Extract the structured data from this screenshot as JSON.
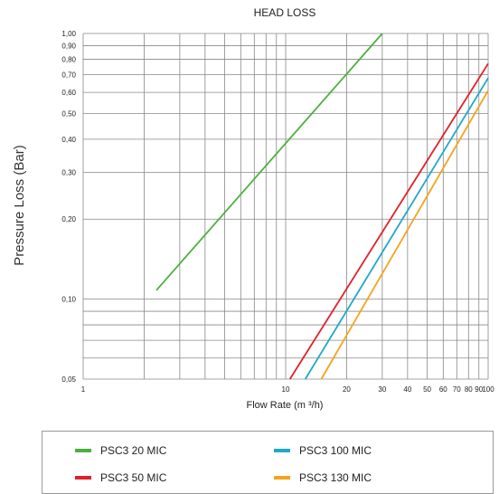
{
  "chart_data": {
    "type": "line",
    "title": "HEAD LOSS",
    "xlabel": "Flow Rate (m ³/h)",
    "ylabel": "Pressure Loss (Bar)",
    "xscale": "log",
    "yscale": "log",
    "xlim": [
      1,
      100
    ],
    "ylim": [
      0.05,
      1.0
    ],
    "grid": true,
    "legend_position": "bottom",
    "x_tick_labels": [
      "1",
      "10",
      "20",
      "30",
      "40",
      "50",
      "60",
      "70",
      "80",
      "90",
      "100"
    ],
    "x_tick_values": [
      1,
      10,
      20,
      30,
      40,
      50,
      60,
      70,
      80,
      90,
      100
    ],
    "y_tick_labels": [
      "1,00",
      "0,90",
      "0,80",
      "0,70",
      "0,60",
      "0,50",
      "0,40",
      "0,30",
      "0,20",
      "0,10",
      "0,05"
    ],
    "y_tick_values": [
      1.0,
      0.9,
      0.8,
      0.7,
      0.6,
      0.5,
      0.4,
      0.3,
      0.2,
      0.1,
      0.05
    ],
    "series": [
      {
        "name": "PSC3 20 MIC",
        "color": "#4caf3f",
        "x": [
          2.3,
          30
        ],
        "y": [
          0.108,
          1.0
        ]
      },
      {
        "name": "PSC3 50 MIC",
        "color": "#e0202a",
        "x": [
          10.5,
          100
        ],
        "y": [
          0.05,
          0.77
        ]
      },
      {
        "name": "PSC3 100 MIC",
        "color": "#1fa9c9",
        "x": [
          12.5,
          100
        ],
        "y": [
          0.05,
          0.68
        ]
      },
      {
        "name": "PSC3 130 MIC",
        "color": "#f5a31a",
        "x": [
          15.0,
          100
        ],
        "y": [
          0.05,
          0.61
        ]
      }
    ]
  }
}
